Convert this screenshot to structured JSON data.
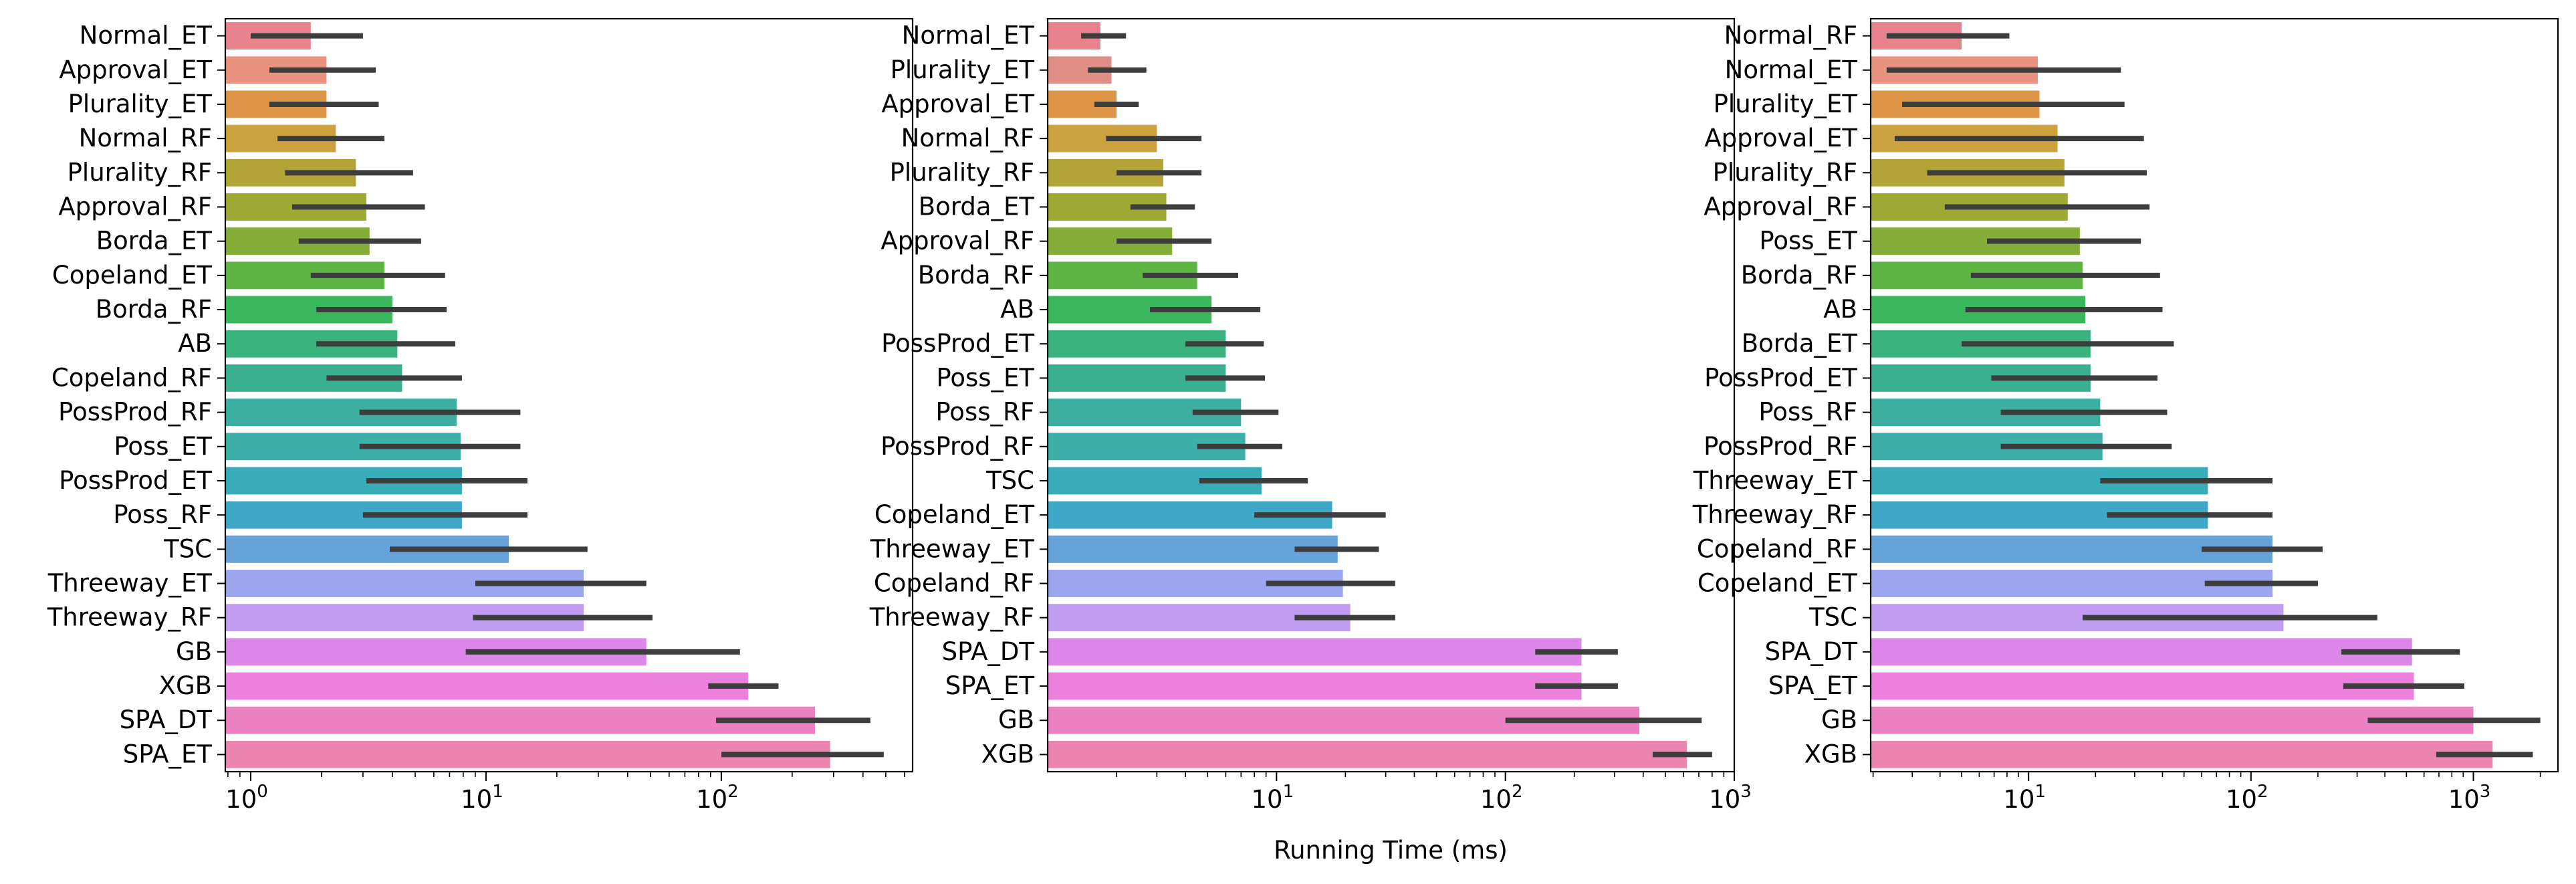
{
  "xlabel_shared": "Running Time (ms)",
  "chart_data": [
    {
      "type": "bar",
      "orientation": "horizontal",
      "xscale": "log",
      "xlim": [
        0.78,
        650
      ],
      "xticks": [
        {
          "value": 1,
          "base": "10",
          "exp": "0"
        },
        {
          "value": 10,
          "base": "10",
          "exp": "1"
        },
        {
          "value": 100,
          "base": "10",
          "exp": "2"
        }
      ],
      "grid": false,
      "xlabel": "",
      "categories": [
        "Normal_ET",
        "Approval_ET",
        "Plurality_ET",
        "Normal_RF",
        "Plurality_RF",
        "Approval_RF",
        "Borda_ET",
        "Copeland_ET",
        "Borda_RF",
        "AB",
        "Copeland_RF",
        "PossProd_RF",
        "Poss_ET",
        "PossProd_ET",
        "Poss_RF",
        "TSC",
        "Threeway_ET",
        "Threeway_RF",
        "GB",
        "XGB",
        "SPA_DT",
        "SPA_ET"
      ],
      "values": [
        1.8,
        2.1,
        2.1,
        2.3,
        2.8,
        3.1,
        3.2,
        3.7,
        4.0,
        4.2,
        4.4,
        7.5,
        7.8,
        7.9,
        7.9,
        12.5,
        26,
        26,
        48,
        130,
        250,
        290
      ],
      "error_low": [
        1.0,
        1.2,
        1.2,
        1.3,
        1.4,
        1.5,
        1.6,
        1.8,
        1.9,
        1.9,
        2.1,
        2.9,
        2.9,
        3.1,
        3.0,
        3.9,
        9.0,
        8.8,
        8.2,
        88,
        95,
        100
      ],
      "error_high": [
        3.0,
        3.4,
        3.5,
        3.7,
        4.9,
        5.5,
        5.3,
        6.7,
        6.8,
        7.4,
        7.9,
        14,
        14,
        15,
        15,
        27,
        48,
        51,
        120,
        175,
        430,
        490
      ],
      "colors": [
        "#e8828d",
        "#e99280",
        "#df9548",
        "#cba23d",
        "#b2a437",
        "#9faa35",
        "#84ae38",
        "#5eb543",
        "#3ab65c",
        "#3bb37e",
        "#3ab091",
        "#3cae9f",
        "#3cb0a9",
        "#39acba",
        "#3fa7c8",
        "#65a3da",
        "#9ba6ee",
        "#c29cf0",
        "#dd87ea",
        "#ec80dd",
        "#eb80c3",
        "#ec85b0"
      ]
    },
    {
      "type": "bar",
      "orientation": "horizontal",
      "xscale": "log",
      "xlim": [
        1.0,
        1000
      ],
      "xticks": [
        {
          "value": 10,
          "base": "10",
          "exp": "1"
        },
        {
          "value": 100,
          "base": "10",
          "exp": "2"
        },
        {
          "value": 1000,
          "base": "10",
          "exp": "3"
        }
      ],
      "grid": false,
      "xlabel": "Running Time (ms)",
      "categories": [
        "Normal_ET",
        "Plurality_ET",
        "Approval_ET",
        "Normal_RF",
        "Plurality_RF",
        "Borda_ET",
        "Approval_RF",
        "Borda_RF",
        "AB",
        "PossProd_ET",
        "Poss_ET",
        "Poss_RF",
        "PossProd_RF",
        "TSC",
        "Copeland_ET",
        "Threeway_ET",
        "Copeland_RF",
        "Threeway_RF",
        "SPA_DT",
        "SPA_ET",
        "GB",
        "XGB"
      ],
      "values": [
        1.7,
        1.9,
        2.0,
        3.0,
        3.2,
        3.3,
        3.5,
        4.5,
        5.2,
        6.0,
        6.0,
        7.0,
        7.3,
        8.6,
        17.5,
        18.5,
        19.5,
        21,
        215,
        215,
        385,
        620
      ],
      "error_low": [
        1.4,
        1.5,
        1.6,
        1.8,
        2.0,
        2.3,
        2.0,
        2.6,
        2.8,
        4.0,
        4.0,
        4.3,
        4.5,
        4.6,
        8.0,
        12,
        9.0,
        12,
        135,
        135,
        100,
        440
      ],
      "error_high": [
        2.2,
        2.7,
        2.5,
        4.7,
        4.7,
        4.4,
        5.2,
        6.8,
        8.5,
        8.8,
        8.9,
        10.2,
        10.6,
        13.7,
        30,
        28,
        33,
        33,
        310,
        310,
        720,
        800
      ],
      "colors": [
        "#e8828d",
        "#df8e86",
        "#df9548",
        "#cba23d",
        "#b2a437",
        "#9faa35",
        "#84ae38",
        "#5eb543",
        "#3ab65c",
        "#3bb37e",
        "#3ab091",
        "#3cae9f",
        "#3cb0a9",
        "#39acba",
        "#3fa7c8",
        "#65a3da",
        "#9ba6ee",
        "#c29cf0",
        "#dd87ea",
        "#ec80dd",
        "#eb80c3",
        "#ec85b0"
      ]
    },
    {
      "type": "bar",
      "orientation": "horizontal",
      "xscale": "log",
      "xlim": [
        1.95,
        2400
      ],
      "xticks": [
        {
          "value": 10,
          "base": "10",
          "exp": "1"
        },
        {
          "value": 100,
          "base": "10",
          "exp": "2"
        },
        {
          "value": 1000,
          "base": "10",
          "exp": "3"
        }
      ],
      "grid": false,
      "xlabel": "",
      "categories": [
        "Normal_RF",
        "Normal_ET",
        "Plurality_ET",
        "Approval_ET",
        "Plurality_RF",
        "Approval_RF",
        "Poss_ET",
        "Borda_RF",
        "AB",
        "Borda_ET",
        "PossProd_ET",
        "Poss_RF",
        "PossProd_RF",
        "Threeway_ET",
        "Threeway_RF",
        "Copeland_RF",
        "Copeland_ET",
        "TSC",
        "SPA_DT",
        "SPA_ET",
        "GB",
        "XGB"
      ],
      "values": [
        5.0,
        11,
        11.2,
        13.5,
        14.5,
        15,
        17,
        17.5,
        18,
        19,
        19,
        21,
        21.5,
        64,
        64,
        125,
        125,
        140,
        530,
        540,
        1000,
        1220
      ],
      "error_low": [
        2.3,
        2.3,
        2.7,
        2.5,
        3.5,
        4.2,
        6.5,
        5.5,
        5.2,
        5.0,
        6.8,
        7.5,
        7.5,
        21,
        22.5,
        60,
        62,
        17.5,
        255,
        260,
        335,
        680
      ],
      "error_high": [
        8.2,
        26,
        27,
        33,
        34,
        35,
        32,
        39,
        40,
        45,
        38,
        42,
        44,
        125,
        125,
        210,
        200,
        370,
        870,
        910,
        2000,
        1850
      ],
      "colors": [
        "#e8828d",
        "#e99280",
        "#df9548",
        "#cba23d",
        "#b2a437",
        "#9faa35",
        "#84ae38",
        "#5eb543",
        "#3ab65c",
        "#3bb37e",
        "#3ab091",
        "#3cae9f",
        "#3cb0a9",
        "#39acba",
        "#3fa7c8",
        "#65a3da",
        "#9ba6ee",
        "#c29cf0",
        "#dd87ea",
        "#ec80dd",
        "#eb80c3",
        "#ec85b0"
      ]
    }
  ]
}
